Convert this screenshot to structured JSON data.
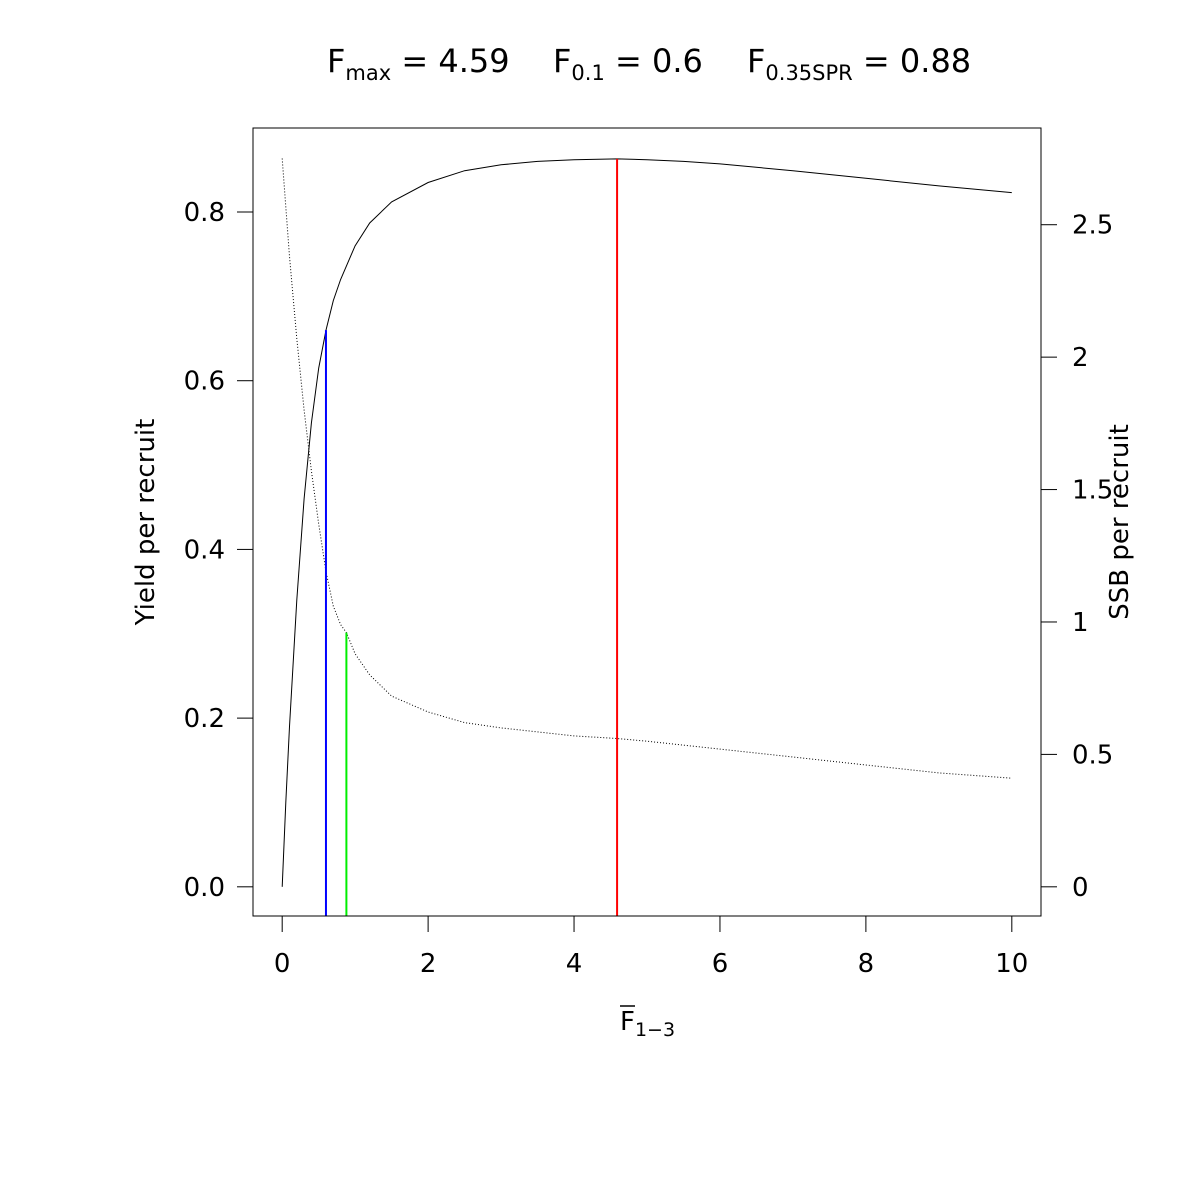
{
  "chart_data": {
    "type": "line",
    "title_terms": [
      {
        "symbol": "F",
        "subscript": "max",
        "equals": " = 4.59"
      },
      {
        "symbol": "F",
        "subscript": "0.1",
        "equals": " = 0.6"
      },
      {
        "symbol": "F",
        "subscript": "0.35SPR",
        "equals": " = 0.88"
      }
    ],
    "xlabel": {
      "symbol": "F",
      "subscript": "1−3",
      "overline": true
    },
    "ylabel": "Yield per recruit",
    "y2label": "SSB per recruit",
    "xlim": [
      -0.4,
      10.4
    ],
    "ylim": [
      -0.0346,
      0.8996
    ],
    "y2lim": [
      -0.1102,
      2.8652
    ],
    "x_ticks": [
      0,
      2,
      4,
      6,
      8,
      10
    ],
    "x_tick_labels": [
      "0",
      "2",
      "4",
      "6",
      "8",
      "10"
    ],
    "y_ticks": [
      0.0,
      0.2,
      0.4,
      0.6,
      0.8
    ],
    "y_tick_labels": [
      "0.0",
      "0.2",
      "0.4",
      "0.6",
      "0.8"
    ],
    "y2_ticks": [
      0,
      0.5,
      1,
      1.5,
      2,
      2.5
    ],
    "y2_tick_labels": [
      "0",
      "0.5",
      "1",
      "1.5",
      "2",
      "2.5"
    ],
    "series": [
      {
        "key": "ypr",
        "axis": "left",
        "style": "solid",
        "color": "#000000",
        "x": [
          0,
          0.05,
          0.1,
          0.2,
          0.3,
          0.4,
          0.5,
          0.6,
          0.7,
          0.8,
          1.0,
          1.2,
          1.5,
          2.0,
          2.5,
          3.0,
          3.5,
          4.0,
          4.59,
          5.0,
          5.5,
          6.0,
          7.0,
          8.0,
          9.0,
          10.0
        ],
        "y": [
          0.0,
          0.1,
          0.19,
          0.34,
          0.46,
          0.55,
          0.615,
          0.66,
          0.695,
          0.72,
          0.76,
          0.787,
          0.812,
          0.835,
          0.849,
          0.856,
          0.86,
          0.862,
          0.863,
          0.862,
          0.86,
          0.857,
          0.849,
          0.84,
          0.831,
          0.823
        ]
      },
      {
        "key": "ssb",
        "axis": "right",
        "style": "dotted",
        "color": "#000000",
        "x": [
          0,
          0.1,
          0.2,
          0.3,
          0.4,
          0.5,
          0.6,
          0.7,
          0.8,
          0.88,
          1.0,
          1.2,
          1.5,
          2.0,
          2.5,
          3.0,
          4.0,
          4.59,
          5.0,
          6.0,
          7.0,
          8.0,
          9.0,
          10.0
        ],
        "y": [
          2.75,
          2.38,
          2.07,
          1.8,
          1.57,
          1.37,
          1.19,
          1.06,
          0.99,
          0.96,
          0.88,
          0.8,
          0.72,
          0.66,
          0.62,
          0.6,
          0.57,
          0.56,
          0.55,
          0.52,
          0.49,
          0.46,
          0.43,
          0.41
        ]
      }
    ],
    "reference_lines": [
      {
        "key": "f01",
        "x": 0.6,
        "axis": "left",
        "y_top": 0.66,
        "color": "#0000ff"
      },
      {
        "key": "f035spr",
        "x": 0.88,
        "axis": "right",
        "y_top": 0.96,
        "color": "#00ee00"
      },
      {
        "key": "fmax",
        "x": 4.59,
        "axis": "left",
        "y_top": 0.863,
        "color": "#ff0000"
      }
    ]
  }
}
